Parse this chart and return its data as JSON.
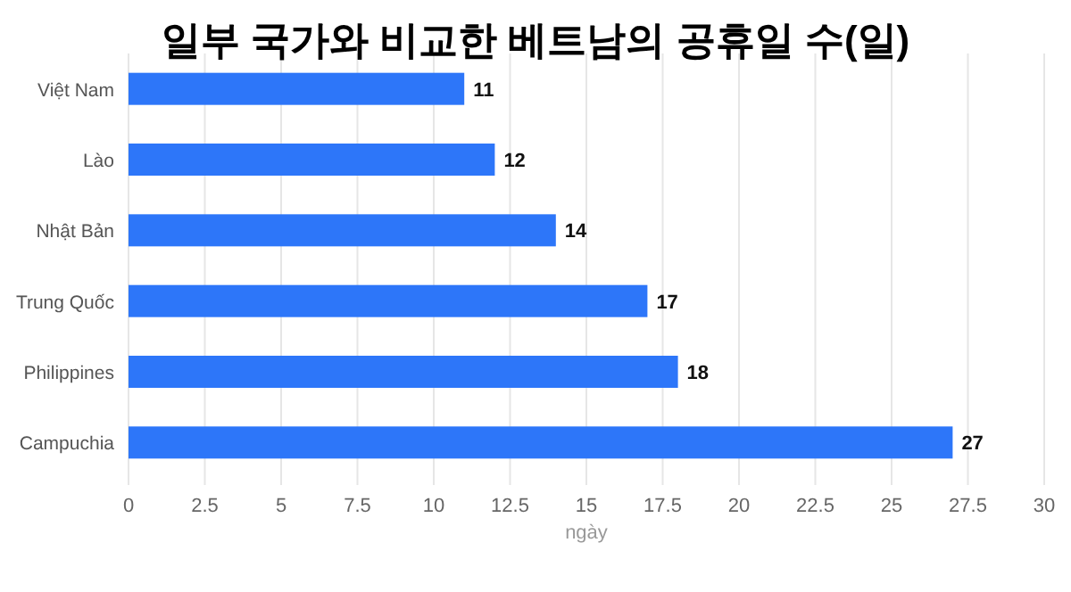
{
  "chart_data": {
    "type": "bar",
    "orientation": "horizontal",
    "title": "일부 국가와 비교한 베트남의 공휴일 수(일)",
    "xlabel": "ngày",
    "categories": [
      "Việt Nam",
      "Lào",
      "Nhật Bản",
      "Trung Quốc",
      "Philippines",
      "Campuchia"
    ],
    "values": [
      11,
      12,
      14,
      17,
      18,
      27
    ],
    "color": "#2d76f9",
    "xlim": [
      0,
      30
    ],
    "xticks": [
      0,
      2.5,
      5,
      7.5,
      10,
      12.5,
      15,
      17.5,
      20,
      22.5,
      25,
      27.5,
      30
    ],
    "grid": "x",
    "data_labels": true
  }
}
